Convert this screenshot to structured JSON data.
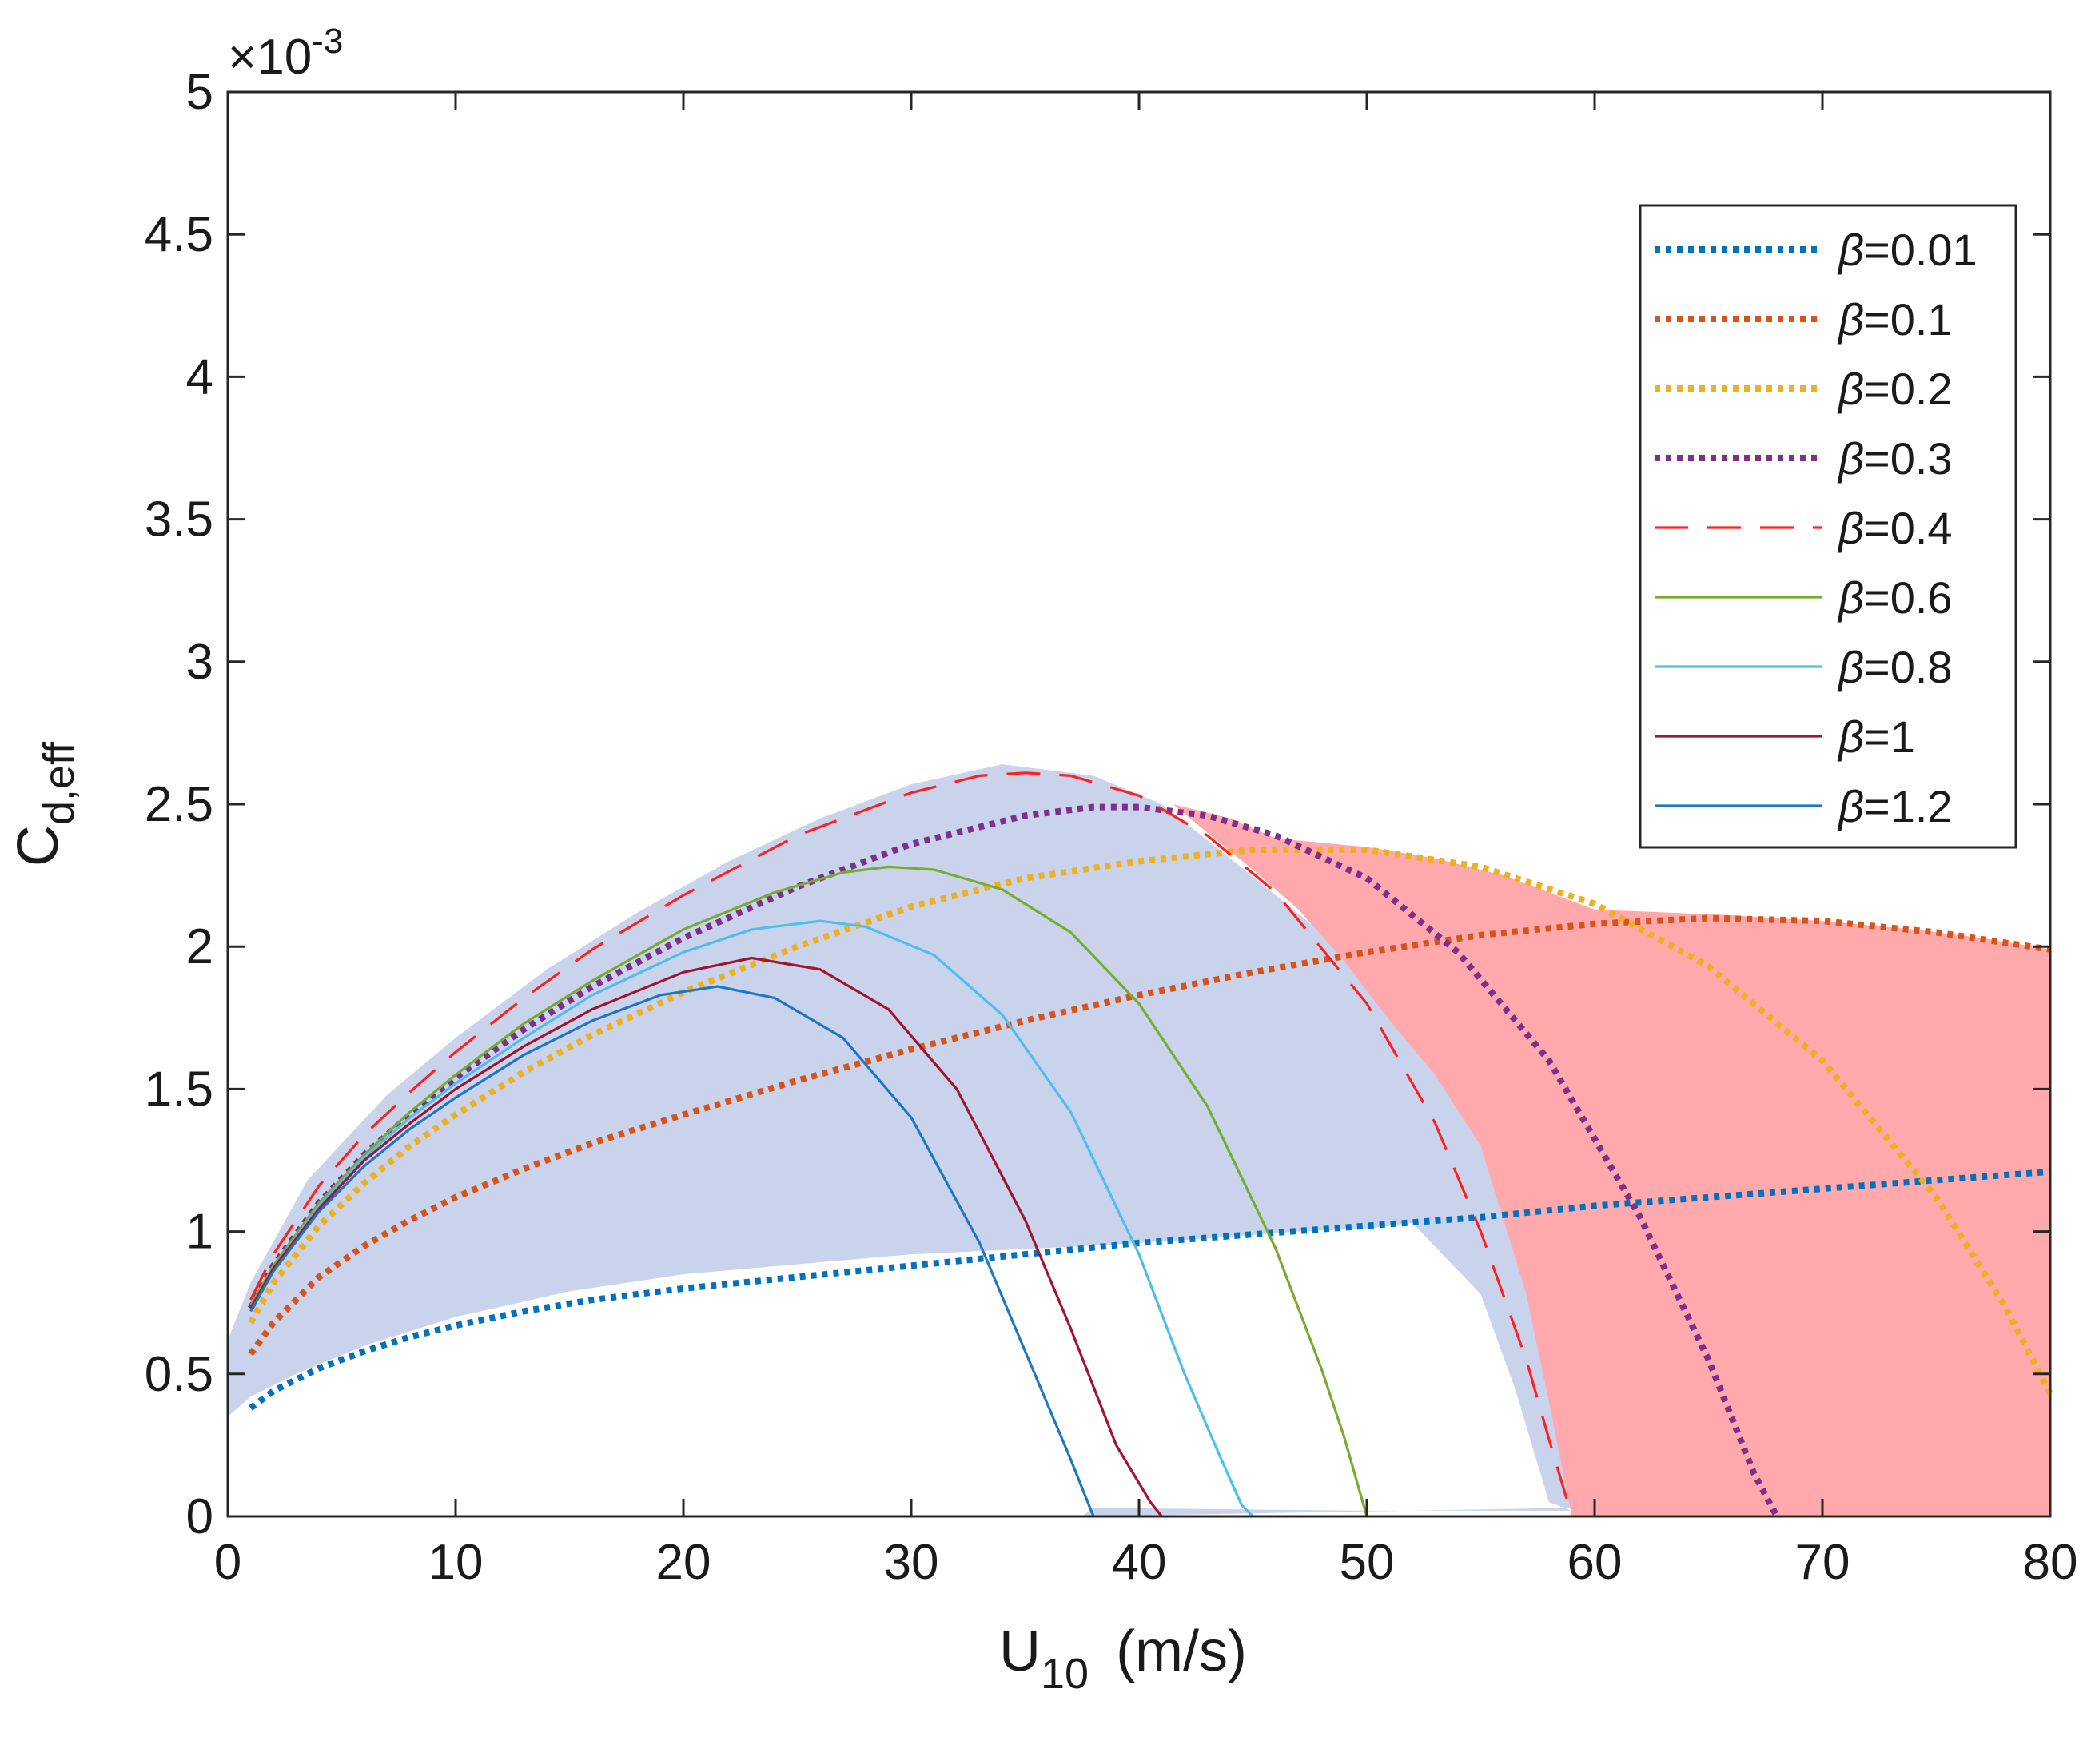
{
  "chart_data": {
    "type": "line",
    "title": "",
    "xlabel": {
      "main": "U",
      "sub": "10",
      "unit": "(m/s)"
    },
    "ylabel": {
      "main": "C",
      "sub": "d,eff"
    },
    "y_multiplier_label": {
      "base": "×10",
      "exp": "-3"
    },
    "xlim": [
      0,
      80
    ],
    "ylim": [
      0,
      5
    ],
    "y_scale": 0.001,
    "x_ticks": [
      0,
      10,
      20,
      30,
      40,
      50,
      60,
      70,
      80
    ],
    "x_tick_labels": [
      "0",
      "10",
      "20",
      "30",
      "40",
      "50",
      "60",
      "70",
      "80"
    ],
    "y_ticks": [
      0,
      0.5,
      1,
      1.5,
      2,
      2.5,
      3,
      3.5,
      4,
      4.5,
      5
    ],
    "y_tick_labels": [
      "0",
      "0.5",
      "1",
      "1.5",
      "2",
      "2.5",
      "3",
      "3.5",
      "4",
      "4.5",
      "5"
    ],
    "grid": false,
    "legend_position": "top-right",
    "legend_symbol": "β",
    "shaded_regions": [
      {
        "name": "blue-envelope",
        "color": "#c9d3ec",
        "upper": [
          [
            0,
            0.62
          ],
          [
            1,
            0.82
          ],
          [
            3.5,
            1.18
          ],
          [
            7,
            1.48
          ],
          [
            10,
            1.68
          ],
          [
            14,
            1.92
          ],
          [
            18,
            2.12
          ],
          [
            22,
            2.3
          ],
          [
            26,
            2.45
          ],
          [
            30,
            2.57
          ],
          [
            34,
            2.64
          ],
          [
            38,
            2.6
          ],
          [
            41,
            2.5
          ],
          [
            44,
            2.31
          ],
          [
            48,
            2.05
          ],
          [
            51,
            1.85
          ],
          [
            54,
            1.55
          ],
          [
            56,
            1.2
          ],
          [
            57.5,
            0.85
          ],
          [
            58.5,
            0.4
          ],
          [
            59,
            0.03
          ]
        ],
        "lower": [
          [
            0,
            0.35
          ],
          [
            1,
            0.42
          ],
          [
            3,
            0.5
          ],
          [
            6,
            0.6
          ],
          [
            10,
            0.7
          ],
          [
            15,
            0.79
          ],
          [
            20,
            0.85
          ],
          [
            30,
            0.92
          ],
          [
            38,
            0.95
          ],
          [
            42,
            0.97
          ],
          [
            47,
            1.0
          ],
          [
            50,
            1.01
          ],
          [
            52,
            1.03
          ],
          [
            55,
            0.78
          ],
          [
            56.5,
            0.45
          ],
          [
            58,
            0.05
          ],
          [
            59,
            0.02
          ],
          [
            50,
            0.02
          ],
          [
            38,
            0.03
          ],
          [
            37.5,
            0.0
          ]
        ]
      },
      {
        "name": "red-envelope",
        "color": "#ffa9ad",
        "upper": [
          [
            41.5,
            2.5
          ],
          [
            44,
            2.45
          ],
          [
            46,
            2.38
          ],
          [
            50,
            2.35
          ],
          [
            53,
            2.31
          ],
          [
            56,
            2.25
          ],
          [
            60,
            2.13
          ],
          [
            63,
            2.12
          ],
          [
            66,
            2.11
          ],
          [
            70,
            2.09
          ],
          [
            74,
            2.06
          ],
          [
            77,
            2.03
          ],
          [
            80,
            1.99
          ]
        ],
        "lower": [
          [
            41.5,
            2.5
          ],
          [
            43,
            2.4
          ],
          [
            45,
            2.27
          ],
          [
            47,
            2.13
          ],
          [
            49,
            1.95
          ],
          [
            51,
            1.74
          ],
          [
            53,
            1.55
          ],
          [
            55,
            1.3
          ],
          [
            57,
            0.78
          ],
          [
            58,
            0.4
          ],
          [
            59,
            0.0
          ],
          [
            80,
            0.0
          ]
        ]
      }
    ],
    "series": [
      {
        "name": "β=0.01",
        "label": "0.01",
        "color": "#0072BD",
        "style": "dotted",
        "x": [
          1,
          2,
          4,
          6,
          8,
          10,
          13,
          16,
          20,
          25,
          30,
          35,
          40,
          45,
          50,
          55,
          60,
          65,
          70,
          75,
          80
        ],
        "y": [
          0.38,
          0.44,
          0.52,
          0.58,
          0.63,
          0.67,
          0.72,
          0.76,
          0.8,
          0.84,
          0.88,
          0.92,
          0.96,
          0.99,
          1.02,
          1.05,
          1.09,
          1.12,
          1.15,
          1.18,
          1.21
        ]
      },
      {
        "name": "β=0.1",
        "label": "0.1",
        "color": "#D95319",
        "style": "dotted",
        "x": [
          1,
          2,
          4,
          6,
          8,
          10,
          13,
          16,
          20,
          25,
          30,
          35,
          40,
          45,
          50,
          55,
          60,
          65,
          70,
          75,
          80
        ],
        "y": [
          0.57,
          0.68,
          0.84,
          0.95,
          1.04,
          1.12,
          1.22,
          1.31,
          1.41,
          1.53,
          1.64,
          1.74,
          1.83,
          1.91,
          1.98,
          2.04,
          2.08,
          2.1,
          2.09,
          2.05,
          1.99
        ]
      },
      {
        "name": "β=0.2",
        "label": "0.2",
        "color": "#EDB120",
        "style": "dotted",
        "x": [
          1,
          2,
          4,
          6,
          8,
          10,
          13,
          16,
          20,
          25,
          30,
          35,
          40,
          45,
          50,
          55,
          60,
          65,
          70,
          75,
          78,
          80
        ],
        "y": [
          0.68,
          0.82,
          1.02,
          1.17,
          1.3,
          1.41,
          1.56,
          1.69,
          1.84,
          2.0,
          2.14,
          2.24,
          2.3,
          2.34,
          2.34,
          2.28,
          2.15,
          1.93,
          1.6,
          1.12,
          0.74,
          0.43
        ]
      },
      {
        "name": "β=0.3",
        "label": "0.3",
        "color": "#7E2F8E",
        "style": "dotted",
        "x": [
          1,
          2,
          4,
          6,
          8,
          10,
          13,
          16,
          20,
          25,
          30,
          35,
          38,
          40,
          43,
          46,
          50,
          54,
          58,
          62,
          65,
          67,
          68
        ],
        "y": [
          0.73,
          0.88,
          1.1,
          1.27,
          1.41,
          1.54,
          1.71,
          1.86,
          2.03,
          2.21,
          2.36,
          2.46,
          2.49,
          2.49,
          2.46,
          2.39,
          2.24,
          1.98,
          1.6,
          1.05,
          0.55,
          0.15,
          0.0
        ]
      },
      {
        "name": "β=0.4",
        "label": "0.4",
        "color": "#FF2020",
        "style": "dashed",
        "x": [
          1,
          2,
          4,
          6,
          8,
          10,
          13,
          16,
          20,
          25,
          30,
          33,
          35,
          37,
          40,
          43,
          46,
          50,
          53,
          55,
          57,
          58,
          59
        ],
        "y": [
          0.76,
          0.92,
          1.16,
          1.34,
          1.49,
          1.63,
          1.82,
          1.99,
          2.18,
          2.39,
          2.54,
          2.6,
          2.61,
          2.6,
          2.53,
          2.39,
          2.19,
          1.8,
          1.38,
          1.0,
          0.55,
          0.27,
          0.0
        ]
      },
      {
        "name": "β=0.6",
        "label": "0.6",
        "color": "#77AC30",
        "style": "solid",
        "x": [
          1,
          2,
          4,
          6,
          8,
          10,
          13,
          16,
          20,
          24,
          27,
          29,
          31,
          34,
          37,
          40,
          43,
          46,
          48,
          49,
          50
        ],
        "y": [
          0.74,
          0.88,
          1.1,
          1.27,
          1.42,
          1.55,
          1.73,
          1.88,
          2.06,
          2.19,
          2.26,
          2.28,
          2.27,
          2.2,
          2.05,
          1.8,
          1.44,
          0.94,
          0.52,
          0.28,
          0.0
        ]
      },
      {
        "name": "β=0.8",
        "label": "0.8",
        "color": "#4DBEEE",
        "style": "solid",
        "x": [
          1,
          2,
          4,
          6,
          8,
          10,
          13,
          16,
          20,
          23,
          26,
          28,
          31,
          34,
          37,
          40,
          42,
          43.5,
          44.5,
          45
        ],
        "y": [
          0.73,
          0.87,
          1.09,
          1.26,
          1.4,
          1.52,
          1.68,
          1.83,
          1.98,
          2.06,
          2.09,
          2.07,
          1.97,
          1.76,
          1.42,
          0.92,
          0.5,
          0.22,
          0.04,
          0.0
        ]
      },
      {
        "name": "β=1",
        "label": "1",
        "color": "#A2142F",
        "style": "solid",
        "x": [
          1,
          2,
          4,
          6,
          8,
          10,
          13,
          16,
          20,
          23,
          26,
          29,
          32,
          35,
          37,
          39,
          40.5,
          41
        ],
        "y": [
          0.73,
          0.87,
          1.08,
          1.25,
          1.38,
          1.5,
          1.65,
          1.78,
          1.91,
          1.96,
          1.92,
          1.78,
          1.5,
          1.04,
          0.66,
          0.25,
          0.05,
          0.0
        ]
      },
      {
        "name": "β=1.2",
        "label": "1.2",
        "color": "#1F77C4",
        "style": "solid",
        "x": [
          1,
          2,
          4,
          6,
          8,
          10,
          13,
          16,
          19,
          21.5,
          24,
          27,
          30,
          33,
          35,
          37,
          38
        ],
        "y": [
          0.72,
          0.86,
          1.07,
          1.23,
          1.36,
          1.47,
          1.62,
          1.74,
          1.83,
          1.86,
          1.82,
          1.68,
          1.4,
          0.96,
          0.58,
          0.2,
          0.0
        ]
      }
    ]
  }
}
